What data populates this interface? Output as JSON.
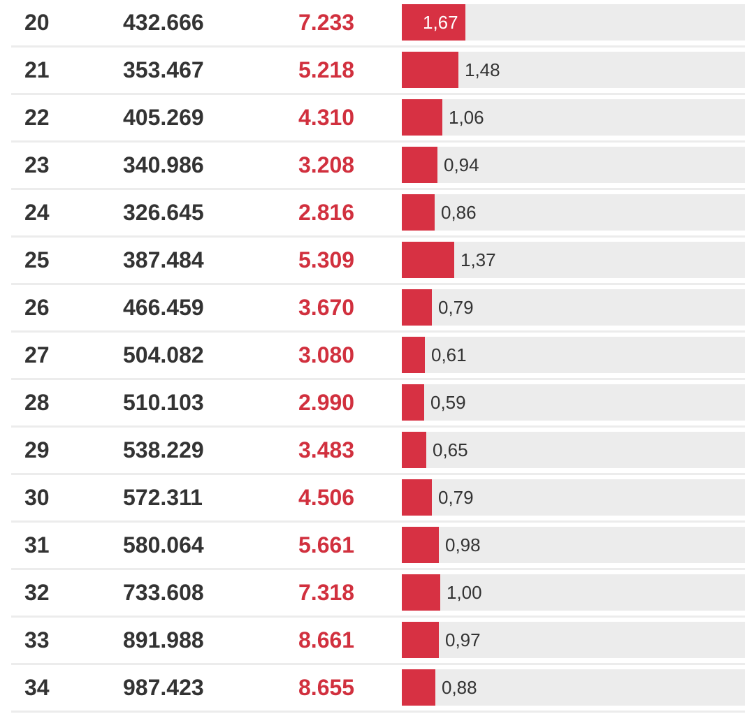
{
  "colors": {
    "accent": "#d73143",
    "positives_text": "#d1303e",
    "track": "#ececec",
    "text": "#333333"
  },
  "rows": [
    {
      "week": "20",
      "tests": "432.666",
      "positives": "7.233",
      "rate": "1,67",
      "rate_value": 1.67,
      "label_inside": true
    },
    {
      "week": "21",
      "tests": "353.467",
      "positives": "5.218",
      "rate": "1,48",
      "rate_value": 1.48,
      "label_inside": false
    },
    {
      "week": "22",
      "tests": "405.269",
      "positives": "4.310",
      "rate": "1,06",
      "rate_value": 1.06,
      "label_inside": false
    },
    {
      "week": "23",
      "tests": "340.986",
      "positives": "3.208",
      "rate": "0,94",
      "rate_value": 0.94,
      "label_inside": false
    },
    {
      "week": "24",
      "tests": "326.645",
      "positives": "2.816",
      "rate": "0,86",
      "rate_value": 0.86,
      "label_inside": false
    },
    {
      "week": "25",
      "tests": "387.484",
      "positives": "5.309",
      "rate": "1,37",
      "rate_value": 1.37,
      "label_inside": false
    },
    {
      "week": "26",
      "tests": "466.459",
      "positives": "3.670",
      "rate": "0,79",
      "rate_value": 0.79,
      "label_inside": false
    },
    {
      "week": "27",
      "tests": "504.082",
      "positives": "3.080",
      "rate": "0,61",
      "rate_value": 0.61,
      "label_inside": false
    },
    {
      "week": "28",
      "tests": "510.103",
      "positives": "2.990",
      "rate": "0,59",
      "rate_value": 0.59,
      "label_inside": false
    },
    {
      "week": "29",
      "tests": "538.229",
      "positives": "3.483",
      "rate": "0,65",
      "rate_value": 0.65,
      "label_inside": false
    },
    {
      "week": "30",
      "tests": "572.311",
      "positives": "4.506",
      "rate": "0,79",
      "rate_value": 0.79,
      "label_inside": false
    },
    {
      "week": "31",
      "tests": "580.064",
      "positives": "5.661",
      "rate": "0,98",
      "rate_value": 0.98,
      "label_inside": false
    },
    {
      "week": "32",
      "tests": "733.608",
      "positives": "7.318",
      "rate": "1,00",
      "rate_value": 1.0,
      "label_inside": false
    },
    {
      "week": "33",
      "tests": "891.988",
      "positives": "8.661",
      "rate": "0,97",
      "rate_value": 0.97,
      "label_inside": false
    },
    {
      "week": "34",
      "tests": "987.423",
      "positives": "8.655",
      "rate": "0,88",
      "rate_value": 0.88,
      "label_inside": false
    }
  ]
}
